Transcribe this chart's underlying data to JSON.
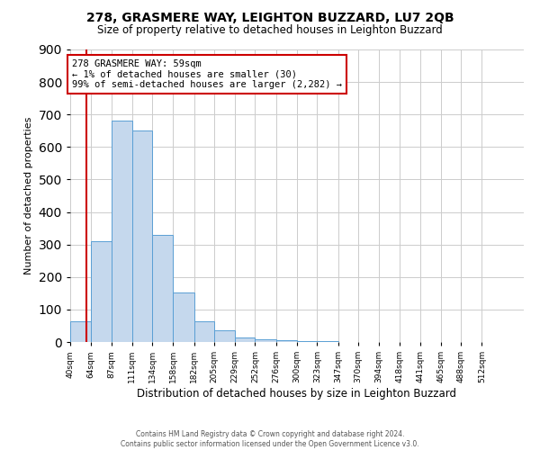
{
  "title": "278, GRASMERE WAY, LEIGHTON BUZZARD, LU7 2QB",
  "subtitle": "Size of property relative to detached houses in Leighton Buzzard",
  "xlabel": "Distribution of detached houses by size in Leighton Buzzard",
  "ylabel": "Number of detached properties",
  "bin_labels": [
    "40sqm",
    "64sqm",
    "87sqm",
    "111sqm",
    "134sqm",
    "158sqm",
    "182sqm",
    "205sqm",
    "229sqm",
    "252sqm",
    "276sqm",
    "300sqm",
    "323sqm",
    "347sqm",
    "370sqm",
    "394sqm",
    "418sqm",
    "441sqm",
    "465sqm",
    "488sqm",
    "512sqm"
  ],
  "bar_heights": [
    65,
    310,
    680,
    650,
    330,
    152,
    65,
    35,
    15,
    8,
    5,
    3,
    2,
    1,
    0,
    0,
    0,
    0,
    1,
    0,
    1
  ],
  "bar_color": "#c5d8ed",
  "bar_edge_color": "#5a9fd4",
  "property_line_x": 59,
  "property_line_color": "#cc0000",
  "annotation_text": "278 GRASMERE WAY: 59sqm\n← 1% of detached houses are smaller (30)\n99% of semi-detached houses are larger (2,282) →",
  "annotation_box_color": "#ffffff",
  "annotation_box_edge_color": "#cc0000",
  "ylim": [
    0,
    900
  ],
  "yticks": [
    0,
    100,
    200,
    300,
    400,
    500,
    600,
    700,
    800,
    900
  ],
  "footer_line1": "Contains HM Land Registry data © Crown copyright and database right 2024.",
  "footer_line2": "Contains public sector information licensed under the Open Government Licence v3.0.",
  "background_color": "#ffffff",
  "grid_color": "#cccccc"
}
